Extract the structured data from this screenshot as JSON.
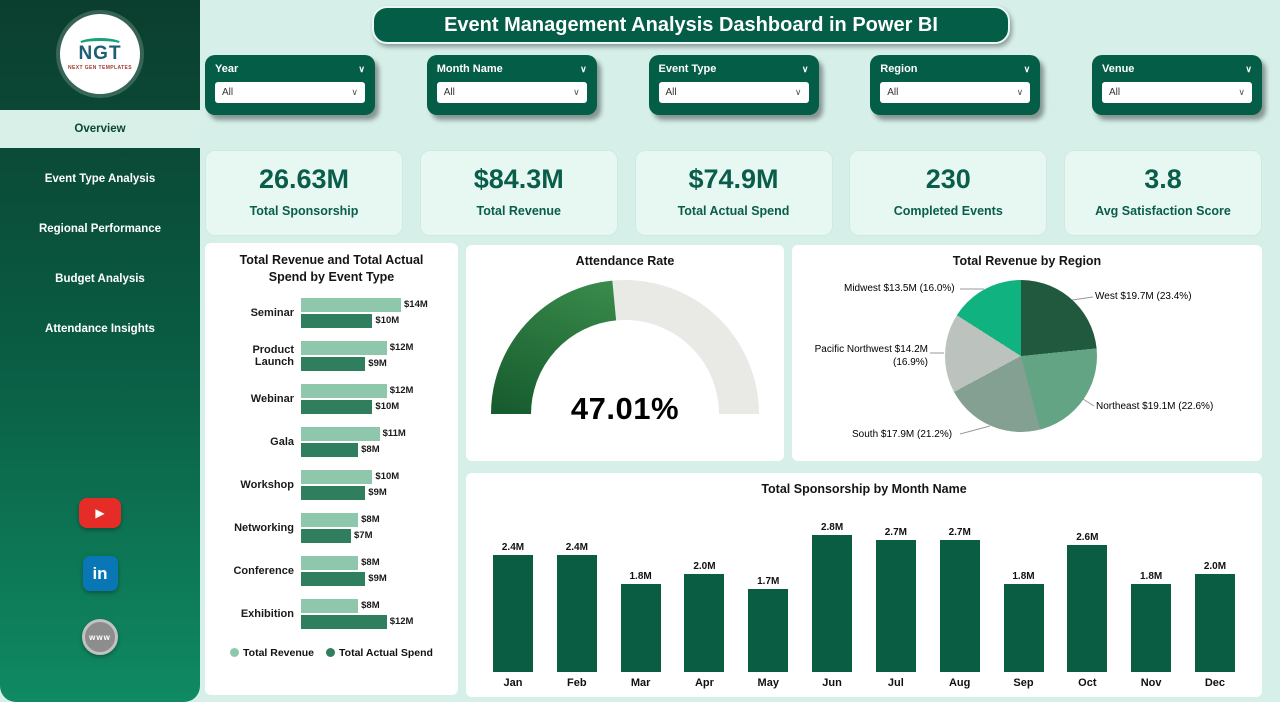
{
  "header": {
    "title": "Event Management Analysis Dashboard in Power BI"
  },
  "sidebar": {
    "logo": {
      "text": "NGT",
      "subtext": "NEXT GEN TEMPLATES"
    },
    "items": [
      {
        "label": "Overview",
        "active": true
      },
      {
        "label": "Event Type Analysis",
        "active": false
      },
      {
        "label": "Regional Performance",
        "active": false
      },
      {
        "label": "Budget Analysis",
        "active": false
      },
      {
        "label": "Attendance Insights",
        "active": false
      }
    ]
  },
  "icons": {
    "chevron": "∨",
    "play": "▶",
    "linkedin": "in",
    "web": "www"
  },
  "filters": [
    {
      "label": "Year",
      "value": "All"
    },
    {
      "label": "Month Name",
      "value": "All"
    },
    {
      "label": "Event Type",
      "value": "All"
    },
    {
      "label": "Region",
      "value": "All"
    },
    {
      "label": "Venue",
      "value": "All"
    }
  ],
  "kpis": [
    {
      "value": "26.63M",
      "label": "Total Sponsorship"
    },
    {
      "value": "$84.3M",
      "label": "Total Revenue"
    },
    {
      "value": "$74.9M",
      "label": "Total Actual Spend"
    },
    {
      "value": "230",
      "label": "Completed Events"
    },
    {
      "value": "3.8",
      "label": "Avg Satisfaction Score"
    }
  ],
  "chart_data": [
    {
      "type": "bar",
      "orientation": "horizontal",
      "title": "Total Revenue and Total Actual Spend by Event Type",
      "categories": [
        "Seminar",
        "Product Launch",
        "Webinar",
        "Gala",
        "Workshop",
        "Networking",
        "Conference",
        "Exhibition"
      ],
      "series": [
        {
          "name": "Total Revenue",
          "color": "#8fc7ad",
          "values": [
            14,
            12,
            12,
            11,
            10,
            8,
            8,
            8
          ],
          "labels": [
            "$14M",
            "$12M",
            "$12M",
            "$11M",
            "$10M",
            "$8M",
            "$8M",
            "$8M"
          ]
        },
        {
          "name": "Total Actual Spend",
          "color": "#2f7f5e",
          "values": [
            10,
            9,
            10,
            8,
            9,
            7,
            9,
            12
          ],
          "labels": [
            "$10M",
            "$9M",
            "$10M",
            "$8M",
            "$9M",
            "$7M",
            "$9M",
            "$12M"
          ]
        }
      ],
      "xmax": 14,
      "unit": "M USD"
    },
    {
      "type": "gauge",
      "title": "Attendance Rate",
      "value": 47.01,
      "max": 100,
      "label": "47.01%"
    },
    {
      "type": "pie",
      "title": "Total Revenue by Region",
      "slices": [
        {
          "name": "West",
          "value": 23.4,
          "amount": "$19.7M",
          "label": "West $19.7M (23.4%)",
          "color": "#20593e"
        },
        {
          "name": "Northeast",
          "value": 22.6,
          "amount": "$19.1M",
          "label": "Northeast $19.1M (22.6%)",
          "color": "#62a483"
        },
        {
          "name": "South",
          "value": 21.2,
          "amount": "$17.9M",
          "label": "South $17.9M (21.2%)",
          "color": "#84a092"
        },
        {
          "name": "Pacific Northwest",
          "value": 16.9,
          "amount": "$14.2M",
          "label": "Pacific Northwest $14.2M (16.9%)",
          "color": "#bcc2bd"
        },
        {
          "name": "Midwest",
          "value": 16.0,
          "amount": "$13.5M",
          "label": "Midwest $13.5M (16.0%)",
          "color": "#10b37f"
        }
      ]
    },
    {
      "type": "bar",
      "orientation": "vertical",
      "title": "Total Sponsorship by Month Name",
      "categories": [
        "Jan",
        "Feb",
        "Mar",
        "Apr",
        "May",
        "Jun",
        "Jul",
        "Aug",
        "Sep",
        "Oct",
        "Nov",
        "Dec"
      ],
      "values": [
        2.4,
        2.4,
        1.8,
        2.0,
        1.7,
        2.8,
        2.7,
        2.7,
        1.8,
        2.6,
        1.8,
        2.0
      ],
      "labels": [
        "2.4M",
        "2.4M",
        "1.8M",
        "2.0M",
        "1.7M",
        "2.8M",
        "2.7M",
        "2.7M",
        "1.8M",
        "2.6M",
        "1.8M",
        "2.0M"
      ],
      "ymax": 2.8
    }
  ]
}
